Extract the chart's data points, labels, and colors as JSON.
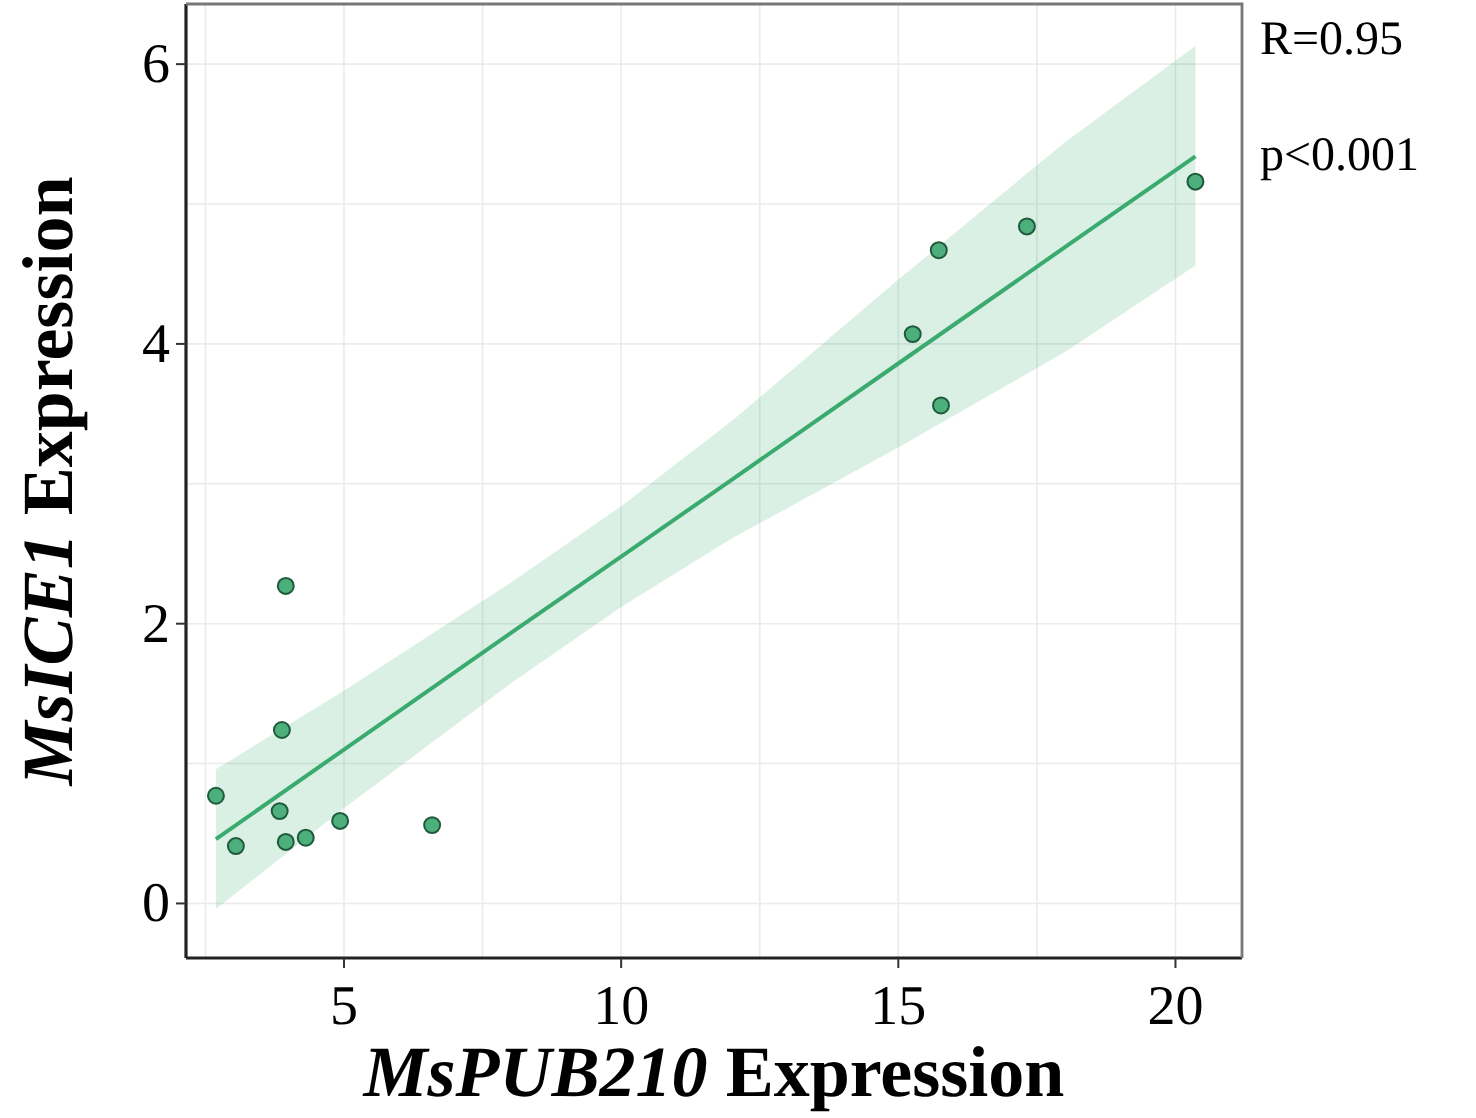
{
  "chart_data": {
    "type": "scatter",
    "xlabel": "MsPUB210 Expression",
    "ylabel": "MsICE1 Expression",
    "xlim": [
      2.15,
      21.2
    ],
    "ylim": [
      -0.39,
      6.43
    ],
    "xticks": [
      5,
      10,
      15,
      20
    ],
    "yticks": [
      0,
      2,
      4,
      6
    ],
    "grid": true,
    "marker": "circle",
    "annotations": [
      "R=0.95",
      "p<0.001"
    ],
    "series": [
      {
        "color": "#4daf7c",
        "x": [
          2.69,
          3.05,
          3.84,
          3.88,
          3.95,
          3.95,
          4.31,
          4.93,
          6.59,
          15.26,
          15.73,
          15.77,
          17.32,
          20.36
        ],
        "values": [
          0.77,
          0.41,
          0.66,
          1.24,
          0.44,
          2.27,
          0.47,
          0.59,
          0.56,
          4.07,
          4.67,
          3.56,
          4.84,
          5.16
        ]
      },
      {
        "type": "line",
        "color": "#3aaa6e",
        "marker": "none",
        "line_style": "solid",
        "x": [
          2.69,
          5,
          8,
          10,
          12,
          15,
          18,
          20.36
        ],
        "values": [
          0.46,
          1.1,
          1.93,
          2.48,
          3.03,
          3.86,
          4.69,
          5.34
        ],
        "lower": [
          -0.04,
          0.68,
          1.57,
          2.12,
          2.61,
          3.26,
          3.94,
          4.56
        ],
        "upper": [
          0.96,
          1.52,
          2.29,
          2.84,
          3.45,
          4.46,
          5.44,
          6.13
        ]
      }
    ]
  }
}
